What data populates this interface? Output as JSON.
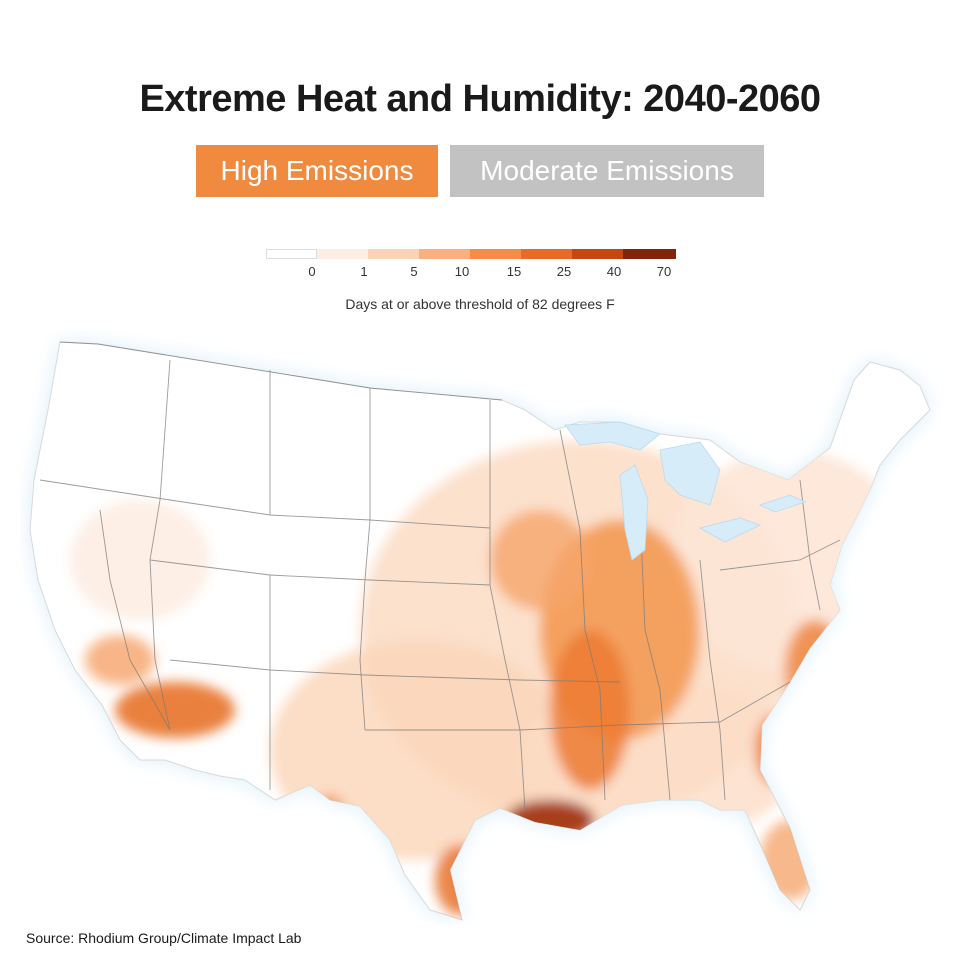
{
  "title": "Extreme Heat and Humidity: 2040-2060",
  "toggles": {
    "high": "High Emissions",
    "moderate": "Moderate Emissions"
  },
  "legend": {
    "caption": "Days at or above threshold of 82 degrees F",
    "ticks": [
      "0",
      "1",
      "5",
      "10",
      "15",
      "25",
      "40",
      "70"
    ],
    "colors": [
      "#ffffff",
      "#fdeee4",
      "#fbd3b6",
      "#f9b07e",
      "#f58d46",
      "#e86b25",
      "#c6460f",
      "#7f250a"
    ]
  },
  "colors": {
    "accent": "#f08a3e",
    "inactive": "#c2c2c2",
    "water": "#dff0f9"
  },
  "source": "Source: Rhodium Group/Climate Impact Lab"
}
